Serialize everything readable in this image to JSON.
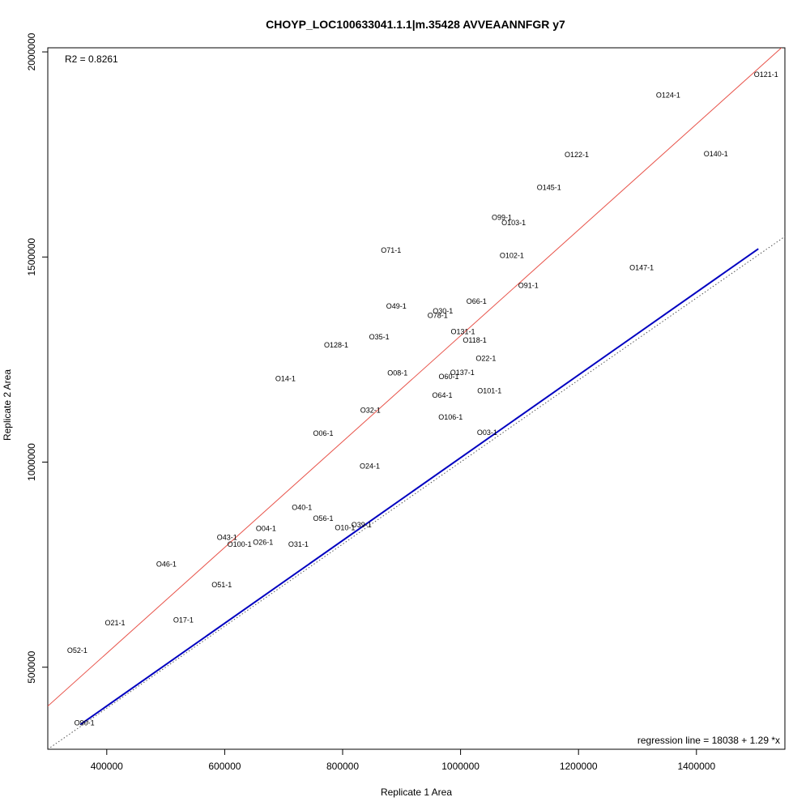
{
  "chart_data": {
    "type": "scatter",
    "title": "CHOYP_LOC100633041.1.1|m.35428 AVVEAANNFGR y7",
    "xlabel": "Replicate 1 Area",
    "ylabel": "Replicate 2 Area",
    "xlim": [
      300000,
      1550000
    ],
    "ylim": [
      300000,
      2010000
    ],
    "x_ticks": [
      400000,
      600000,
      800000,
      1000000,
      1200000,
      1400000
    ],
    "x_tick_labels": [
      "400000",
      "600000",
      "800000",
      "1000000",
      "1200000",
      "1400000"
    ],
    "y_ticks": [
      500000,
      1000000,
      1500000,
      2000000
    ],
    "y_tick_labels": [
      "500000",
      "1000000",
      "1500000",
      "2000000"
    ],
    "r2_label": "R2 = 0.8261",
    "regression_label": "regression line = 18038 + 1.29 *x",
    "grid": false,
    "lines": [
      {
        "name": "regression",
        "color": "#e8534a",
        "intercept": 18038,
        "slope": 1.29
      },
      {
        "name": "fit",
        "color": "#0000c0",
        "x_range": [
          355000,
          1505000
        ],
        "y_range": [
          360000,
          1520000
        ]
      },
      {
        "name": "identity",
        "color": "#555555",
        "style": "dotted",
        "intercept": 0,
        "slope": 1
      }
    ],
    "points": [
      {
        "label": "O121-1",
        "x": 1518000,
        "y": 1945000
      },
      {
        "label": "O124-1",
        "x": 1352000,
        "y": 1894000
      },
      {
        "label": "O122-1",
        "x": 1197000,
        "y": 1749000
      },
      {
        "label": "O140-1",
        "x": 1433000,
        "y": 1751000
      },
      {
        "label": "O145-1",
        "x": 1150000,
        "y": 1669000
      },
      {
        "label": "O99-1",
        "x": 1070000,
        "y": 1596000
      },
      {
        "label": "O103-1",
        "x": 1090000,
        "y": 1583000
      },
      {
        "label": "O71-1",
        "x": 882000,
        "y": 1516000
      },
      {
        "label": "O102-1",
        "x": 1087000,
        "y": 1504000
      },
      {
        "label": "O147-1",
        "x": 1307000,
        "y": 1474000
      },
      {
        "label": "O91-1",
        "x": 1115000,
        "y": 1430000
      },
      {
        "label": "O66-1",
        "x": 1027000,
        "y": 1392000
      },
      {
        "label": "O49-1",
        "x": 891000,
        "y": 1380000
      },
      {
        "label": "O30-1",
        "x": 970000,
        "y": 1368000
      },
      {
        "label": "O78-1",
        "x": 961000,
        "y": 1357000
      },
      {
        "label": "O131-1",
        "x": 1004000,
        "y": 1318000
      },
      {
        "label": "O35-1",
        "x": 862000,
        "y": 1305000
      },
      {
        "label": "O118-1",
        "x": 1024000,
        "y": 1297000
      },
      {
        "label": "O128-1",
        "x": 789000,
        "y": 1285000
      },
      {
        "label": "O22-1",
        "x": 1043000,
        "y": 1253000
      },
      {
        "label": "O08-1",
        "x": 893000,
        "y": 1217000
      },
      {
        "label": "O137-1",
        "x": 1003000,
        "y": 1218000
      },
      {
        "label": "O60-1",
        "x": 980000,
        "y": 1208000
      },
      {
        "label": "O14-1",
        "x": 703000,
        "y": 1203000
      },
      {
        "label": "O101-1",
        "x": 1049000,
        "y": 1174000
      },
      {
        "label": "O64-1",
        "x": 969000,
        "y": 1163000
      },
      {
        "label": "O32-1",
        "x": 847000,
        "y": 1126000
      },
      {
        "label": "O106-1",
        "x": 983000,
        "y": 1110000
      },
      {
        "label": "O06-1",
        "x": 767000,
        "y": 1070000
      },
      {
        "label": "O03-1",
        "x": 1045000,
        "y": 1072000
      },
      {
        "label": "O24-1",
        "x": 846000,
        "y": 990000
      },
      {
        "label": "O40-1",
        "x": 731000,
        "y": 889000
      },
      {
        "label": "O56-1",
        "x": 767000,
        "y": 863000
      },
      {
        "label": "O39-1",
        "x": 832000,
        "y": 847000
      },
      {
        "label": "O10-1",
        "x": 804000,
        "y": 840000
      },
      {
        "label": "O04-1",
        "x": 670000,
        "y": 838000
      },
      {
        "label": "O43-1",
        "x": 604000,
        "y": 816000
      },
      {
        "label": "O26-1",
        "x": 665000,
        "y": 805000
      },
      {
        "label": "O100-1",
        "x": 625000,
        "y": 800000
      },
      {
        "label": "O31-1",
        "x": 725000,
        "y": 800000
      },
      {
        "label": "O46-1",
        "x": 501000,
        "y": 751000
      },
      {
        "label": "O51-1",
        "x": 595000,
        "y": 701000
      },
      {
        "label": "O21-1",
        "x": 414000,
        "y": 608000
      },
      {
        "label": "O17-1",
        "x": 530000,
        "y": 615000
      },
      {
        "label": "O52-1",
        "x": 350000,
        "y": 541000
      },
      {
        "label": "O90-1",
        "x": 362000,
        "y": 364000
      }
    ]
  }
}
